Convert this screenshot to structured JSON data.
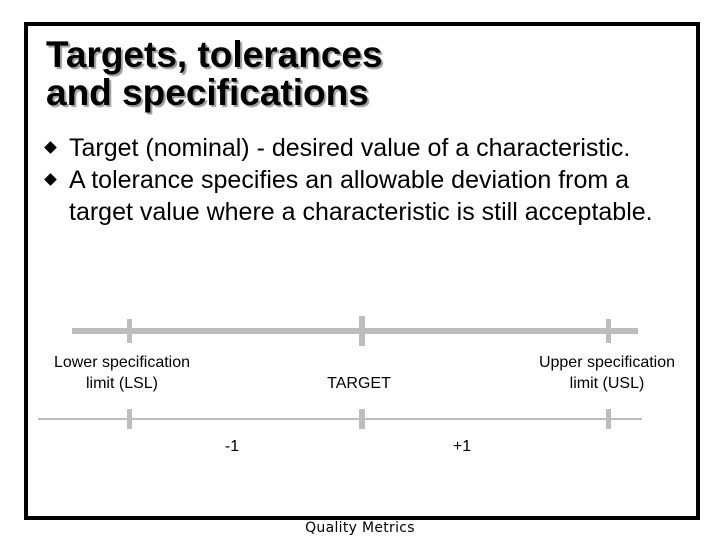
{
  "slide": {
    "title_line1": "Targets, tolerances",
    "title_line2": "and specifications",
    "bullets": [
      "Target (nominal) - desired value of a characteristic.",
      "A tolerance specifies an allowable deviation from a target value where a characteristic is still acceptable."
    ],
    "diagram": {
      "lsl_line1": "Lower specification",
      "lsl_line2": "limit (LSL)",
      "target_label": "TARGET",
      "usl_line1": "Upper specification",
      "usl_line2": "limit (USL)",
      "minus_label": "-1",
      "plus_label": "+1"
    },
    "footer": "Quality Metrics"
  },
  "colors": {
    "axis_line": "#bdbdbd",
    "title_shadow": "#9a9a9a"
  }
}
